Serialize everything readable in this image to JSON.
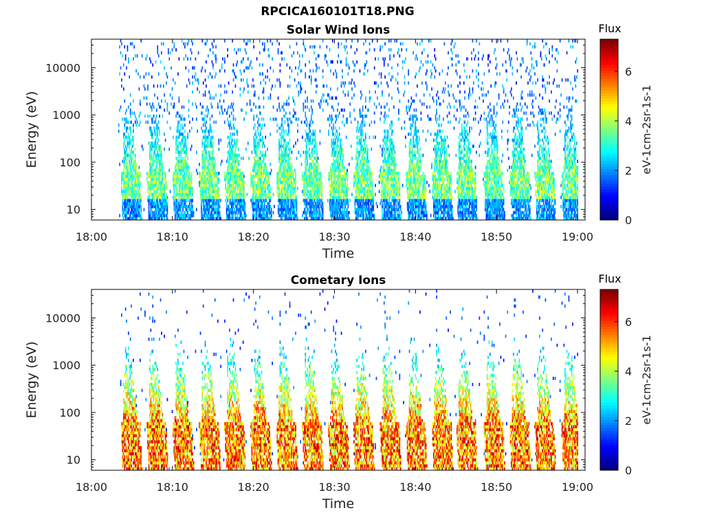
{
  "figure": {
    "title": "RPCICA160101T18.PNG"
  },
  "chart_data": [
    {
      "type": "heatmap",
      "title": "Solar Wind Ions",
      "xlabel": "Time",
      "ylabel": "Energy (eV)",
      "x_ticks": [
        "18:00",
        "18:10",
        "18:20",
        "18:30",
        "18:40",
        "18:50",
        "19:00"
      ],
      "xlim": [
        "18:00",
        "19:00"
      ],
      "y_scale": "log",
      "y_ticks": [
        10,
        100,
        1000,
        10000
      ],
      "ylim": [
        6,
        40000
      ],
      "colorbar": {
        "label": "eV-1cm-2sr-1s-1",
        "title": "Flux",
        "ticks": [
          0,
          2,
          4,
          6
        ],
        "range": [
          0,
          7.3
        ],
        "colormap": "jet"
      },
      "data_start": "18:03",
      "burst_times": [
        "18:04.8",
        "18:08.0",
        "18:11.2",
        "18:14.5",
        "18:17.6",
        "18:20.8",
        "18:24.0",
        "18:27.2",
        "18:30.4",
        "18:33.5",
        "18:36.8",
        "18:40.0",
        "18:43.2",
        "18:46.2",
        "18:49.6",
        "18:52.8",
        "18:55.9",
        "18:59.2"
      ],
      "max_flux": 4.6,
      "background_flux": 1.8
    },
    {
      "type": "heatmap",
      "title": "Cometary Ions",
      "xlabel": "Time",
      "ylabel": "Energy (eV)",
      "x_ticks": [
        "18:00",
        "18:10",
        "18:20",
        "18:30",
        "18:40",
        "18:50",
        "19:00"
      ],
      "xlim": [
        "18:00",
        "19:00"
      ],
      "y_scale": "log",
      "y_ticks": [
        10,
        100,
        1000,
        10000
      ],
      "ylim": [
        6,
        40000
      ],
      "colorbar": {
        "label": "eV-1cm-2sr-1s-1",
        "title": "Flux",
        "ticks": [
          0,
          2,
          4,
          6
        ],
        "range": [
          0,
          7.3
        ],
        "colormap": "jet"
      },
      "data_start": "18:03",
      "burst_times": [
        "18:04.8",
        "18:08.0",
        "18:11.2",
        "18:14.5",
        "18:17.6",
        "18:20.8",
        "18:24.0",
        "18:27.2",
        "18:30.4",
        "18:33.5",
        "18:36.8",
        "18:40.0",
        "18:43.2",
        "18:46.2",
        "18:49.6",
        "18:52.8",
        "18:55.9",
        "18:59.2"
      ],
      "max_flux": 7.0,
      "background_flux": 1.5
    }
  ]
}
